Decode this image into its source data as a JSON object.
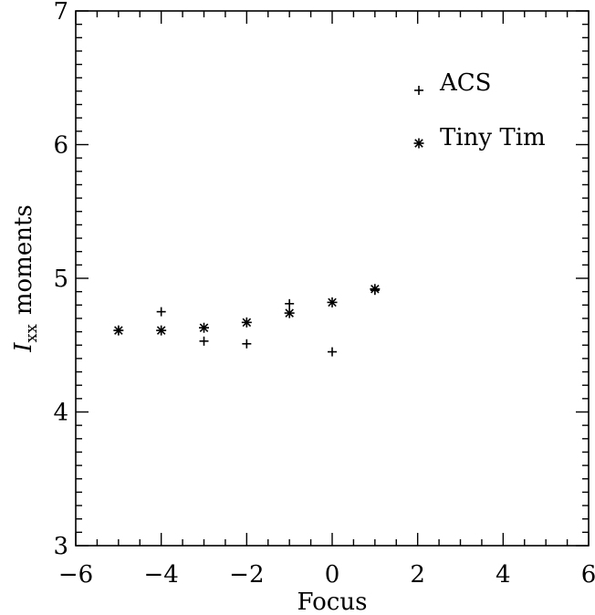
{
  "chart_data": {
    "type": "scatter",
    "xlabel": "Focus",
    "ylabel": {
      "symbol": "I",
      "subscript": "xx",
      "text": "moments"
    },
    "xlim": [
      -6,
      6
    ],
    "ylim": [
      3,
      7
    ],
    "x_ticks": [
      -6,
      -4,
      -2,
      0,
      2,
      4,
      6
    ],
    "x_tick_labels": [
      "−6",
      "−4",
      "−2",
      "0",
      "2",
      "4",
      "6"
    ],
    "y_ticks": [
      3,
      4,
      5,
      6,
      7
    ],
    "y_tick_labels": [
      "3",
      "4",
      "5",
      "6",
      "7"
    ],
    "grid": false,
    "legend_position": "top-right",
    "series": [
      {
        "name": "ACS",
        "marker": "plus",
        "x": [
          -5,
          -4,
          -3,
          -2,
          -1,
          0,
          1
        ],
        "y": [
          4.61,
          4.75,
          4.53,
          4.51,
          4.81,
          4.45,
          4.91
        ]
      },
      {
        "name": "Tiny Tim",
        "marker": "star",
        "x": [
          -5,
          -4,
          -3,
          -2,
          -1,
          0,
          1
        ],
        "y": [
          4.61,
          4.61,
          4.63,
          4.67,
          4.74,
          4.82,
          4.92
        ]
      }
    ]
  }
}
